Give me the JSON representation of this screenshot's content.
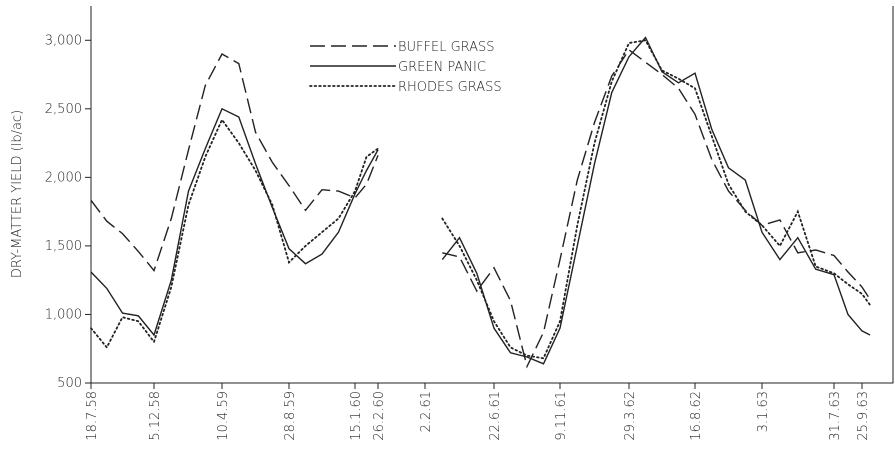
{
  "chart_data": {
    "type": "line",
    "y_label": "DRY-MATTER YIELD (lb/ac)",
    "x": [
      "1958-07-18",
      "1958-08-22",
      "1958-09-26",
      "1958-10-31",
      "1958-12-05",
      "1959-01-06",
      "1959-02-07",
      "1959-03-10",
      "1959-04-10",
      "1959-05-15",
      "1959-06-19",
      "1959-07-24",
      "1959-08-28",
      "1959-10-02",
      "1959-11-06",
      "1959-12-11",
      "1960-01-15",
      "1960-02-05",
      "1960-02-26",
      "1961-02-02",
      "1961-03-09",
      "1961-04-13",
      "1961-05-18",
      "1961-06-22",
      "1961-07-27",
      "1961-08-31",
      "1961-10-05",
      "1961-11-09",
      "1961-12-14",
      "1962-01-18",
      "1962-02-22",
      "1962-03-29",
      "1962-05-03",
      "1962-06-07",
      "1962-07-12",
      "1962-08-16",
      "1962-09-20",
      "1962-10-25",
      "1962-11-29",
      "1963-01-03",
      "1963-02-24",
      "1963-04-17",
      "1963-06-08",
      "1963-07-31",
      "1963-08-28",
      "1963-09-25",
      "1963-10-11"
    ],
    "series": [
      {
        "name": "BUFFEL GRASS",
        "color": "#222222",
        "style": "dashed",
        "values": [
          1833,
          1680,
          1590,
          1460,
          1320,
          1700,
          2200,
          2670,
          2900,
          2830,
          2330,
          2110,
          1940,
          1760,
          1910,
          1900,
          1850,
          1950,
          2160,
          null,
          1450,
          1420,
          1170,
          1340,
          1100,
          620,
          870,
          1400,
          1980,
          2400,
          2740,
          2930,
          2840,
          2750,
          2650,
          2460,
          2130,
          1900,
          1760,
          1650,
          1690,
          1450,
          1470,
          1430,
          1310,
          1200,
          1110
        ]
      },
      {
        "name": "GREEN PANIC",
        "color": "#222222",
        "style": "solid",
        "values": [
          1310,
          1190,
          1010,
          990,
          850,
          1250,
          1900,
          2210,
          2500,
          2440,
          2100,
          1780,
          1480,
          1370,
          1440,
          1600,
          1880,
          2050,
          2200,
          null,
          1400,
          1560,
          1300,
          900,
          720,
          690,
          640,
          900,
          1500,
          2100,
          2620,
          2880,
          3020,
          2770,
          2690,
          2760,
          2350,
          2070,
          1980,
          1600,
          1400,
          1560,
          1330,
          1290,
          1000,
          880,
          850
        ]
      },
      {
        "name": "RHODES GRASS",
        "color": "#222222",
        "style": "dotted",
        "values": [
          900,
          760,
          980,
          950,
          800,
          1200,
          1800,
          2150,
          2420,
          2250,
          2050,
          1800,
          1380,
          1500,
          1600,
          1700,
          1900,
          2150,
          2210,
          null,
          1700,
          1500,
          1250,
          950,
          760,
          700,
          680,
          950,
          1650,
          2250,
          2700,
          2980,
          3000,
          2780,
          2720,
          2650,
          2300,
          1950,
          1750,
          1650,
          1500,
          1750,
          1350,
          1300,
          1220,
          1150,
          1070
        ]
      }
    ],
    "ylim": [
      500,
      3250
    ],
    "yticks": [
      500,
      {
        "value": 1000,
        "label": "1,000"
      },
      {
        "value": 1500,
        "label": "1,500"
      },
      {
        "value": 2000,
        "label": "2,000"
      },
      {
        "value": 2500,
        "label": "2,500"
      },
      {
        "value": 3000,
        "label": "3,000"
      }
    ],
    "xlim": [
      "1958-07-18",
      "1963-11-26"
    ],
    "xticks": [
      {
        "value": "1958-07-18",
        "label": "18.7.58"
      },
      {
        "value": "1958-12-05",
        "label": "5.12.58"
      },
      {
        "value": "1959-04-10",
        "label": "10.4.59"
      },
      {
        "value": "1959-08-28",
        "label": "28.8.59"
      },
      {
        "value": "1960-01-15",
        "label": "15.1.60"
      },
      {
        "value": "1960-02-26",
        "label": "26.2.60"
      },
      {
        "value": "1961-02-02",
        "label": "2.2.61"
      },
      {
        "value": "1961-06-22",
        "label": "22.6.61"
      },
      {
        "value": "1961-11-09",
        "label": "9.11.61"
      },
      {
        "value": "1962-03-29",
        "label": "29.3.62"
      },
      {
        "value": "1962-08-16",
        "label": "16.8.62"
      },
      {
        "value": "1963-01-03",
        "label": "3.1.63"
      },
      {
        "value": "1963-07-31",
        "label": "31.7.63"
      },
      {
        "value": "1963-09-25",
        "label": "25.9.63"
      }
    ],
    "legend": "upper center"
  }
}
